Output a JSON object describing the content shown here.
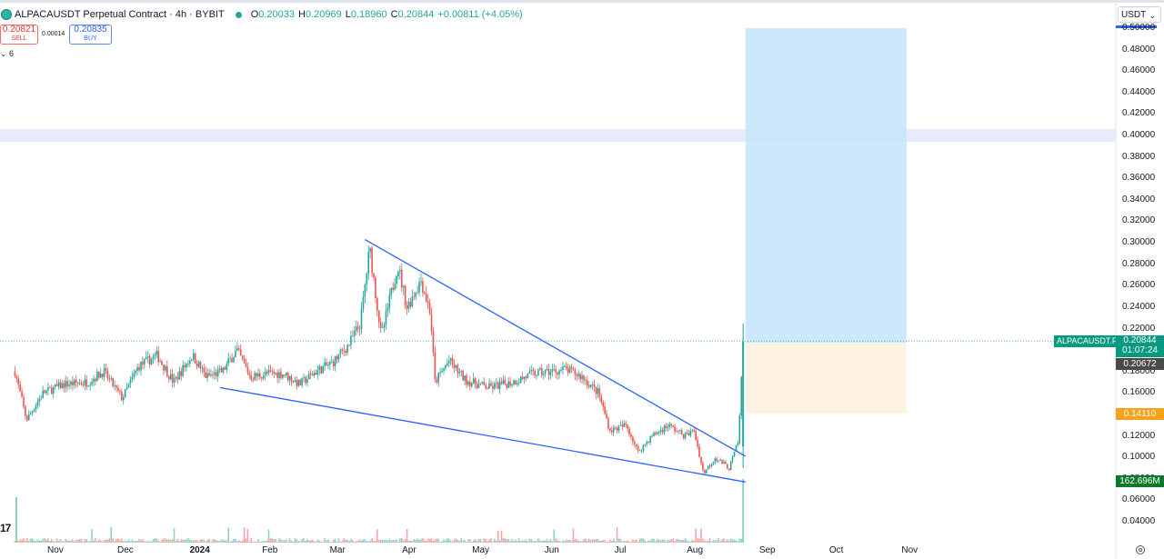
{
  "header": {
    "title": "ALPACAUSDT Perpetual Contract · 4h · BYBIT",
    "ohlc": {
      "o_label": "O",
      "o": "0.20033",
      "h_label": "H",
      "h": "0.20969",
      "l_label": "L",
      "l": "0.18960",
      "c_label": "C",
      "c": "0.20844",
      "change": "+0.00811 (+4.05%)"
    }
  },
  "trade": {
    "sell_price": "0.20821",
    "sell_label": "SELL",
    "spread": "0.00014",
    "buy_price": "0.20835",
    "buy_label": "BUY"
  },
  "indicator_toggle": "⌄ 6",
  "currency": "USDT",
  "logo_text": "17",
  "colors": {
    "up": "#26a69a",
    "down": "#ef5350",
    "trendline": "#2962ff",
    "profit_zone": "#c8e4fb",
    "loss_zone": "#fdf1e2",
    "band": "#e6ecfe"
  },
  "price_labels": {
    "symbol": "ALPACAUSDT.P",
    "last": "0.20844",
    "countdown": "01:07:24",
    "entry": "0.20672",
    "stop": "0.14110",
    "volume": "162.696M"
  },
  "chart_data": {
    "type": "candlestick",
    "title": "ALPACAUSDT Perpetual Contract · 4h · BYBIT",
    "y_axis": {
      "min": 0.04,
      "max": 0.5,
      "scale": "linear",
      "ticks": [
        "0.50000",
        "0.48000",
        "0.46000",
        "0.44000",
        "0.42000",
        "0.40000",
        "0.38000",
        "0.36000",
        "0.34000",
        "0.32000",
        "0.30000",
        "0.28000",
        "0.26000",
        "0.24000",
        "0.22000",
        "0.20000",
        "0.18000",
        "0.16000",
        "0.14000",
        "0.12000",
        "0.10000",
        "0.08000",
        "0.06000",
        "0.04000"
      ]
    },
    "x_axis": {
      "ticks": [
        {
          "label": "Nov",
          "date": "2023-11-01"
        },
        {
          "label": "Dec",
          "date": "2023-12-01"
        },
        {
          "label": "2024",
          "date": "2024-01-01",
          "bold": true
        },
        {
          "label": "Feb",
          "date": "2024-02-01"
        },
        {
          "label": "Mar",
          "date": "2024-03-01"
        },
        {
          "label": "Apr",
          "date": "2024-04-01"
        },
        {
          "label": "May",
          "date": "2024-05-01"
        },
        {
          "label": "Jun",
          "date": "2024-06-01"
        },
        {
          "label": "Jul",
          "date": "2024-07-01"
        },
        {
          "label": "Aug",
          "date": "2024-08-01"
        },
        {
          "label": "Sep",
          "date": "2024-09-01"
        },
        {
          "label": "Oct",
          "date": "2024-10-01"
        },
        {
          "label": "Nov",
          "date": "2024-11-01"
        }
      ]
    },
    "price_path": [
      {
        "date": "2023-10-15",
        "price": 0.18
      },
      {
        "date": "2023-10-20",
        "price": 0.135
      },
      {
        "date": "2023-10-27",
        "price": 0.16
      },
      {
        "date": "2023-11-05",
        "price": 0.168
      },
      {
        "date": "2023-11-15",
        "price": 0.17
      },
      {
        "date": "2023-11-22",
        "price": 0.18
      },
      {
        "date": "2023-11-30",
        "price": 0.155
      },
      {
        "date": "2023-12-07",
        "price": 0.185
      },
      {
        "date": "2023-12-15",
        "price": 0.195
      },
      {
        "date": "2023-12-22",
        "price": 0.17
      },
      {
        "date": "2023-12-30",
        "price": 0.195
      },
      {
        "date": "2024-01-05",
        "price": 0.175
      },
      {
        "date": "2024-01-12",
        "price": 0.18
      },
      {
        "date": "2024-01-18",
        "price": 0.2
      },
      {
        "date": "2024-01-24",
        "price": 0.175
      },
      {
        "date": "2024-01-31",
        "price": 0.178
      },
      {
        "date": "2024-02-07",
        "price": 0.178
      },
      {
        "date": "2024-02-14",
        "price": 0.168
      },
      {
        "date": "2024-02-21",
        "price": 0.18
      },
      {
        "date": "2024-02-28",
        "price": 0.188
      },
      {
        "date": "2024-03-06",
        "price": 0.205
      },
      {
        "date": "2024-03-11",
        "price": 0.225
      },
      {
        "date": "2024-03-15",
        "price": 0.295
      },
      {
        "date": "2024-03-20",
        "price": 0.212
      },
      {
        "date": "2024-03-27",
        "price": 0.28
      },
      {
        "date": "2024-03-31",
        "price": 0.24
      },
      {
        "date": "2024-04-06",
        "price": 0.265
      },
      {
        "date": "2024-04-10",
        "price": 0.235
      },
      {
        "date": "2024-04-12",
        "price": 0.17
      },
      {
        "date": "2024-04-18",
        "price": 0.19
      },
      {
        "date": "2024-04-25",
        "price": 0.172
      },
      {
        "date": "2024-05-05",
        "price": 0.165
      },
      {
        "date": "2024-05-15",
        "price": 0.17
      },
      {
        "date": "2024-05-24",
        "price": 0.178
      },
      {
        "date": "2024-06-01",
        "price": 0.18
      },
      {
        "date": "2024-06-07",
        "price": 0.182
      },
      {
        "date": "2024-06-14",
        "price": 0.175
      },
      {
        "date": "2024-06-21",
        "price": 0.16
      },
      {
        "date": "2024-06-26",
        "price": 0.125
      },
      {
        "date": "2024-07-03",
        "price": 0.13
      },
      {
        "date": "2024-07-08",
        "price": 0.105
      },
      {
        "date": "2024-07-14",
        "price": 0.12
      },
      {
        "date": "2024-07-21",
        "price": 0.13
      },
      {
        "date": "2024-07-28",
        "price": 0.12
      },
      {
        "date": "2024-08-01",
        "price": 0.125
      },
      {
        "date": "2024-08-05",
        "price": 0.085
      },
      {
        "date": "2024-08-10",
        "price": 0.1
      },
      {
        "date": "2024-08-16",
        "price": 0.09
      },
      {
        "date": "2024-08-20",
        "price": 0.115
      },
      {
        "date": "2024-08-22",
        "price": 0.208
      }
    ],
    "trendlines": [
      {
        "name": "upper",
        "from": {
          "date": "2024-03-13",
          "price": 0.303
        },
        "to": {
          "date": "2024-08-23",
          "price": 0.101
        }
      },
      {
        "name": "lower",
        "from": {
          "date": "2024-01-11",
          "price": 0.165
        },
        "to": {
          "date": "2024-08-23",
          "price": 0.077
        }
      }
    ],
    "position": {
      "type": "long",
      "entry": 0.20672,
      "target": 0.5,
      "stop": 0.1411,
      "start": "2024-08-23",
      "end": "2024-10-31"
    },
    "horizontal_band": {
      "from": 0.394,
      "to": 0.406
    },
    "last_price": 0.20844
  }
}
